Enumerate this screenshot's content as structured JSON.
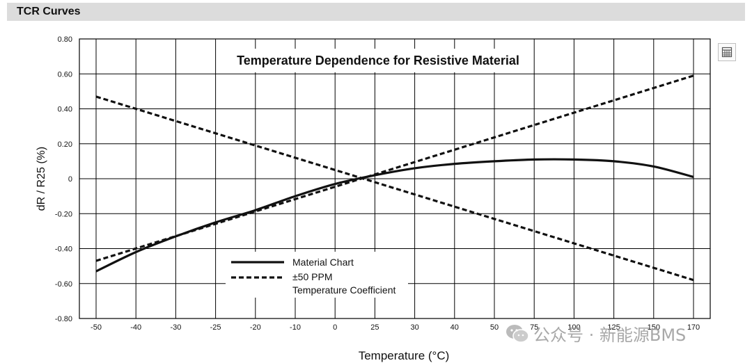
{
  "header": {
    "title": "TCR Curves"
  },
  "watermark": {
    "text": "公众号 · 新能源BMS"
  },
  "icons": {
    "corner": "expand-icon",
    "watermark_logo": "wechat-logo-icon"
  },
  "chart_data": {
    "type": "line",
    "title": "Temperature Dependence for Resistive Material",
    "xlabel": "Temperature (°C)",
    "ylabel": "dR / R25 (%)",
    "x_ticks": [
      "-50",
      "-40",
      "-30",
      "-25",
      "-20",
      "-10",
      "0",
      "25",
      "30",
      "40",
      "50",
      "75",
      "100",
      "125",
      "150",
      "170"
    ],
    "y_ticks": [
      "0.80",
      "0.60",
      "0.40",
      "0.20",
      "0",
      "-0.20",
      "-0.40",
      "-0.60",
      "-0.80"
    ],
    "ylim": [
      -0.8,
      0.8
    ],
    "grid": true,
    "legend_position": "bottom-left",
    "series": [
      {
        "name": "Material Chart",
        "style": "solid",
        "x": [
          "-50",
          "-40",
          "-30",
          "-25",
          "-20",
          "-10",
          "0",
          "25",
          "30",
          "40",
          "50",
          "75",
          "100",
          "125",
          "150",
          "170"
        ],
        "values": [
          -0.53,
          -0.42,
          -0.33,
          -0.25,
          -0.18,
          -0.1,
          -0.03,
          0.02,
          0.06,
          0.085,
          0.1,
          0.11,
          0.11,
          0.1,
          0.07,
          0.01
        ]
      },
      {
        "name": "±50 PPM\nTemperature Coefficient",
        "legend_lines": [
          "±50 PPM",
          "Temperature Coefficient"
        ],
        "style": "dashed",
        "x": [
          "-50",
          "170"
        ],
        "values": [
          -0.47,
          0.59
        ]
      },
      {
        "name": "-50 PPM",
        "style": "dashed",
        "x": [
          "-50",
          "170"
        ],
        "values": [
          0.47,
          -0.58
        ]
      }
    ],
    "colors": {
      "line": "#111111",
      "grid": "#000000",
      "background": "#ffffff"
    }
  }
}
